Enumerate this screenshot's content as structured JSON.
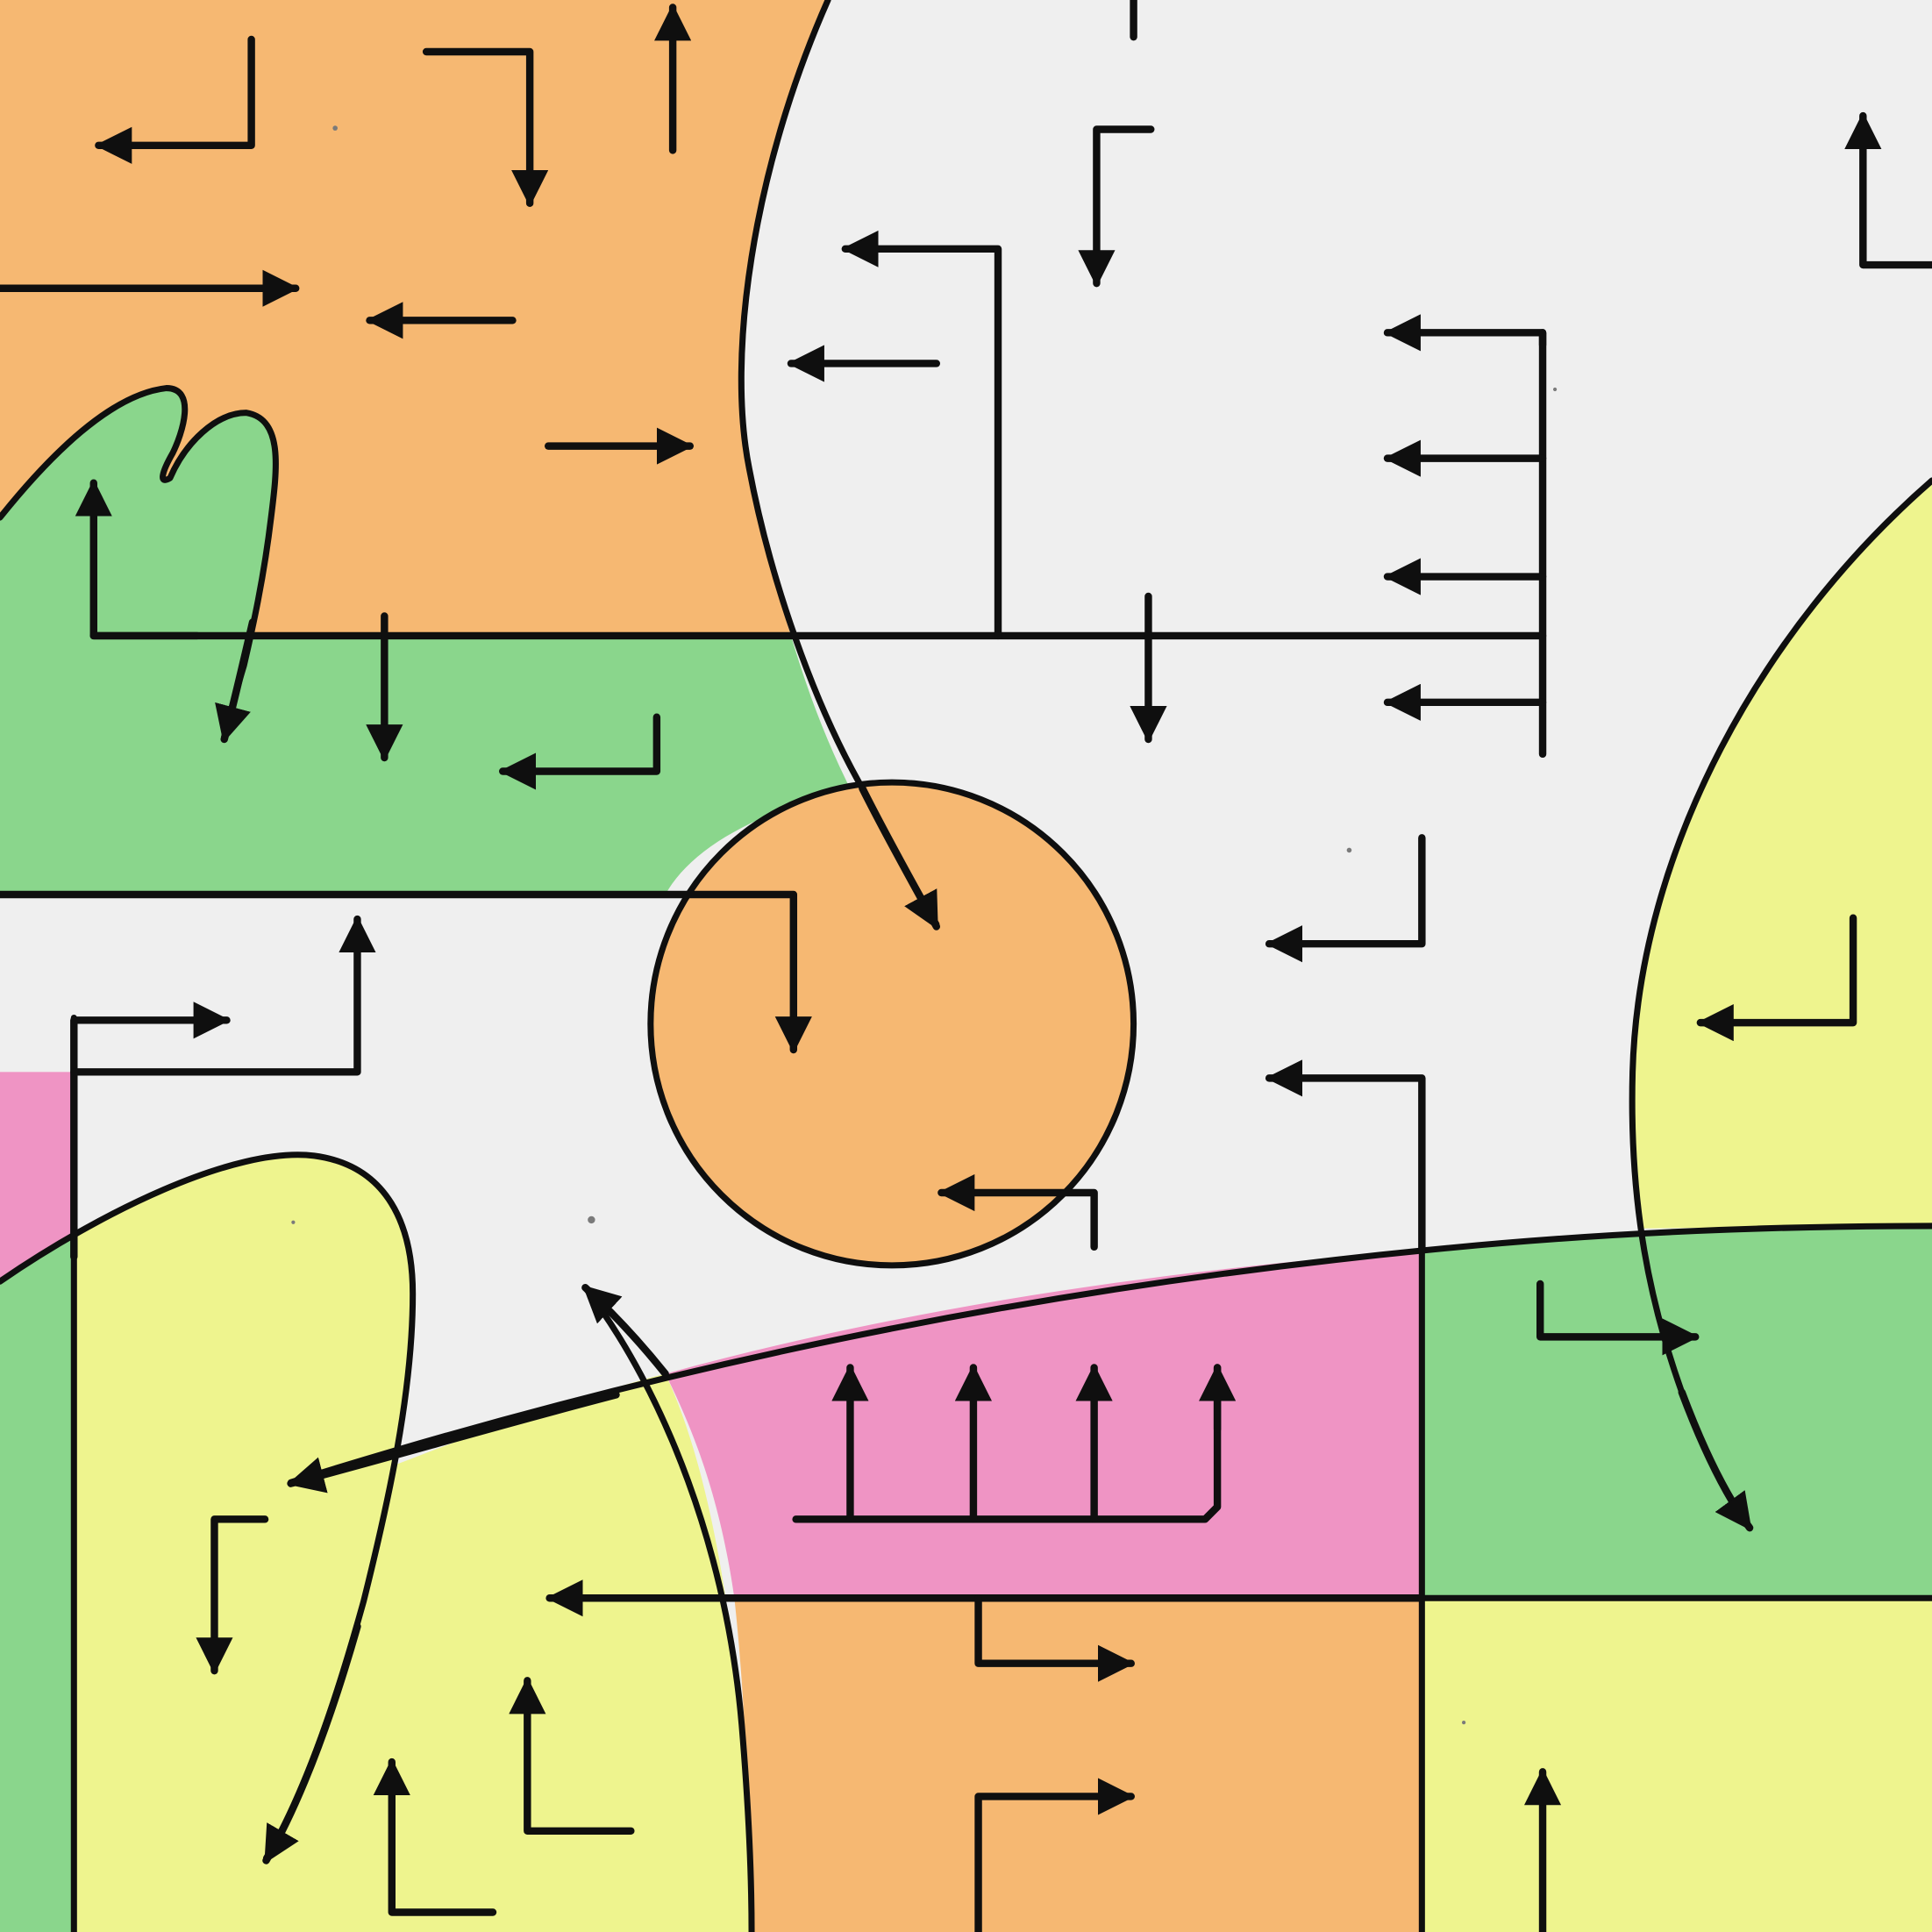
{
  "palette": {
    "paper": "#efefef",
    "orange": "#f6b872",
    "green": "#8ad68c",
    "yellow": "#eef48e",
    "pink": "#ef94c4",
    "ink": "#0f0f0f"
  }
}
